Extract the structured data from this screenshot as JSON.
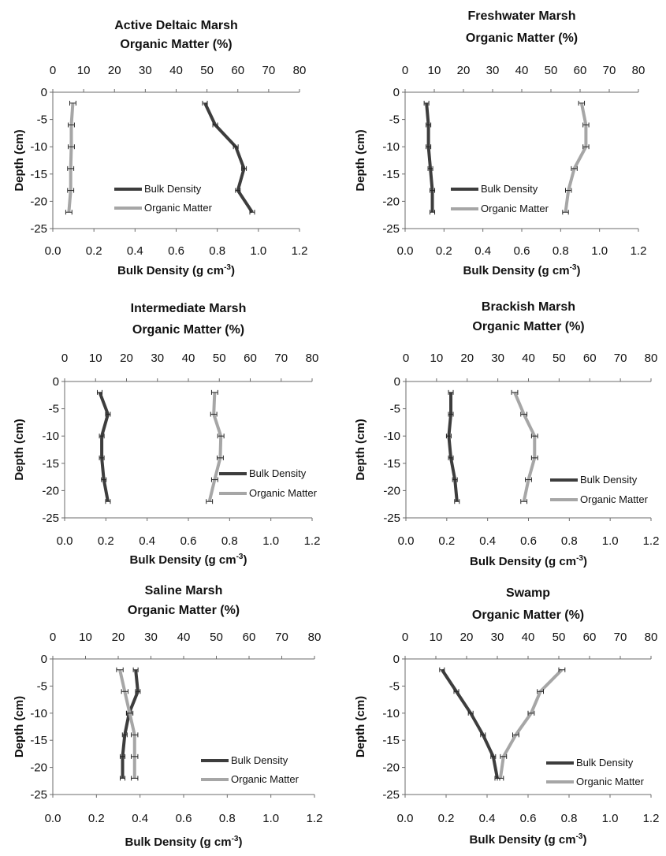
{
  "chart_data": [
    {
      "type": "line",
      "title": "Active Deltaic Marsh",
      "top_axis_label": "Organic Matter (%)",
      "bottom_axis_label": "Bulk Density (g cm",
      "bottom_axis_unit_exp": "-3",
      "bottom_axis_unit_close": ")",
      "ylabel": "Depth (cm)",
      "y": [
        -2,
        -6,
        -10,
        -14,
        -18,
        -22
      ],
      "ylim": [
        -25,
        0
      ],
      "bottom_xlim": [
        0,
        1.2
      ],
      "top_xlim": [
        0,
        80
      ],
      "y_ticks": [
        "0",
        "-5",
        "-10",
        "-15",
        "-20",
        "-25"
      ],
      "bottom_ticks": [
        "0.0",
        "0.2",
        "0.4",
        "0.6",
        "0.8",
        "1.0",
        "1.2"
      ],
      "top_ticks": [
        "0",
        "10",
        "20",
        "30",
        "40",
        "50",
        "60",
        "70",
        "80"
      ],
      "legend_position": "center-left",
      "series": [
        {
          "name": "Bulk Density",
          "axis": "bottom",
          "color": "#3d3d3d",
          "values": [
            0.74,
            0.79,
            0.89,
            0.93,
            0.9,
            0.97
          ],
          "errors": [
            0,
            0,
            0,
            0,
            0,
            0
          ]
        },
        {
          "name": "Organic Matter",
          "axis": "top",
          "color": "#a6a6a6",
          "values": [
            6.5,
            6.0,
            6.0,
            5.8,
            5.8,
            5.2
          ],
          "errors": [
            1,
            1,
            1,
            1,
            1,
            1
          ]
        }
      ]
    },
    {
      "type": "line",
      "title": "Freshwater Marsh",
      "top_axis_label": "Organic Matter (%)",
      "bottom_axis_label": "Bulk Density (g cm",
      "bottom_axis_unit_exp": "-3",
      "bottom_axis_unit_close": ")",
      "ylabel": "Depth (cm)",
      "y": [
        -2,
        -6,
        -10,
        -14,
        -18,
        -22
      ],
      "ylim": [
        -25,
        0
      ],
      "bottom_xlim": [
        0,
        1.2
      ],
      "top_xlim": [
        0,
        80
      ],
      "y_ticks": [
        "0",
        "-5",
        "-10",
        "-15",
        "-20",
        "-25"
      ],
      "bottom_ticks": [
        "0.0",
        "0.2",
        "0.4",
        "0.6",
        "0.8",
        "1.0",
        "1.2"
      ],
      "top_ticks": [
        "0",
        "10",
        "20",
        "30",
        "40",
        "50",
        "60",
        "70",
        "80"
      ],
      "legend_position": "lower-left",
      "series": [
        {
          "name": "Bulk Density",
          "axis": "bottom",
          "color": "#3d3d3d",
          "values": [
            0.11,
            0.12,
            0.12,
            0.13,
            0.14,
            0.14
          ],
          "errors": [
            0,
            0,
            0,
            0,
            0,
            0
          ]
        },
        {
          "name": "Organic Matter",
          "axis": "top",
          "color": "#a6a6a6",
          "values": [
            60.5,
            62,
            62,
            58,
            56,
            55
          ],
          "errors": [
            1,
            1,
            1,
            1,
            1,
            1
          ]
        }
      ]
    },
    {
      "type": "line",
      "title": "Intermediate Marsh",
      "top_axis_label": "Organic Matter (%)",
      "bottom_axis_label": "Bulk Density (g cm",
      "bottom_axis_unit_exp": "-3",
      "bottom_axis_unit_close": ")",
      "ylabel": "Depth (cm)",
      "y": [
        -2,
        -6,
        -10,
        -14,
        -18,
        -22
      ],
      "ylim": [
        -25,
        0
      ],
      "bottom_xlim": [
        0,
        1.2
      ],
      "top_xlim": [
        0,
        80
      ],
      "y_ticks": [
        "0",
        "-5",
        "-10",
        "-15",
        "-20",
        "-25"
      ],
      "bottom_ticks": [
        "0.0",
        "0.2",
        "0.4",
        "0.6",
        "0.8",
        "1.0",
        "1.2"
      ],
      "top_ticks": [
        "0",
        "10",
        "20",
        "30",
        "40",
        "50",
        "60",
        "70",
        "80"
      ],
      "legend_position": "lower-right",
      "series": [
        {
          "name": "Bulk Density",
          "axis": "bottom",
          "color": "#3d3d3d",
          "values": [
            0.17,
            0.21,
            0.18,
            0.18,
            0.19,
            0.21
          ],
          "errors": [
            0,
            0,
            0,
            0,
            0,
            0
          ]
        },
        {
          "name": "Organic Matter",
          "axis": "top",
          "color": "#a6a6a6",
          "values": [
            48.5,
            48.2,
            50.5,
            50.3,
            48.5,
            46.8
          ],
          "errors": [
            1,
            1,
            1,
            1,
            1,
            1
          ]
        }
      ]
    },
    {
      "type": "line",
      "title": "Brackish Marsh",
      "top_axis_label": "Organic Matter (%)",
      "bottom_axis_label": "Bulk Density (g cm",
      "bottom_axis_unit_exp": "-3",
      "bottom_axis_unit_close": ")",
      "ylabel": "Depth (cm)",
      "y": [
        -2,
        -6,
        -10,
        -14,
        -18,
        -22
      ],
      "ylim": [
        -25,
        0
      ],
      "bottom_xlim": [
        0,
        1.2
      ],
      "top_xlim": [
        0,
        80
      ],
      "y_ticks": [
        "0",
        "-5",
        "-10",
        "-15",
        "-20",
        "-25"
      ],
      "bottom_ticks": [
        "0.0",
        "0.2",
        "0.4",
        "0.6",
        "0.8",
        "1.0",
        "1.2"
      ],
      "top_ticks": [
        "0",
        "10",
        "20",
        "30",
        "40",
        "50",
        "60",
        "70",
        "80"
      ],
      "legend_position": "lower-right",
      "series": [
        {
          "name": "Bulk Density",
          "axis": "bottom",
          "color": "#3d3d3d",
          "values": [
            0.22,
            0.22,
            0.21,
            0.22,
            0.24,
            0.25
          ],
          "errors": [
            0,
            0,
            0,
            0,
            0,
            0
          ]
        },
        {
          "name": "Organic Matter",
          "axis": "top",
          "color": "#a6a6a6",
          "values": [
            35.5,
            38.5,
            42,
            42,
            40,
            38.5
          ],
          "errors": [
            1,
            1,
            1,
            1,
            1,
            1
          ]
        }
      ]
    },
    {
      "type": "line",
      "title": "Saline Marsh",
      "top_axis_label": "Organic Matter (%)",
      "bottom_axis_label": "Bulk Density (g cm",
      "bottom_axis_unit_exp": "-3",
      "bottom_axis_unit_close": ")",
      "ylabel": "Depth (cm)",
      "y": [
        -2,
        -6,
        -10,
        -14,
        -18,
        -22
      ],
      "ylim": [
        -25,
        0
      ],
      "bottom_xlim": [
        0,
        1.2
      ],
      "top_xlim": [
        0,
        80
      ],
      "y_ticks": [
        "0",
        "-5",
        "-10",
        "-15",
        "-20",
        "-25"
      ],
      "bottom_ticks": [
        "0.0",
        "0.2",
        "0.4",
        "0.6",
        "0.8",
        "1.0",
        "1.2"
      ],
      "top_ticks": [
        "0",
        "10",
        "20",
        "30",
        "40",
        "50",
        "60",
        "70",
        "80"
      ],
      "legend_position": "lower-right",
      "series": [
        {
          "name": "Bulk Density",
          "axis": "bottom",
          "color": "#3d3d3d",
          "values": [
            0.38,
            0.39,
            0.35,
            0.33,
            0.32,
            0.32
          ],
          "errors": [
            0,
            0,
            0,
            0,
            0,
            0
          ]
        },
        {
          "name": "Organic Matter",
          "axis": "top",
          "color": "#a6a6a6",
          "values": [
            20.5,
            22,
            23.5,
            25,
            25,
            25
          ],
          "errors": [
            1,
            1,
            1,
            1,
            1,
            1
          ]
        }
      ]
    },
    {
      "type": "line",
      "title": "Swamp",
      "top_axis_label": "Organic Matter (%)",
      "bottom_axis_label": "Bulk Density (g cm",
      "bottom_axis_unit_exp": "-3",
      "bottom_axis_unit_close": ")",
      "ylabel": "Depth (cm)",
      "y": [
        -2,
        -6,
        -10,
        -14,
        -18,
        -22
      ],
      "ylim": [
        -25,
        0
      ],
      "bottom_xlim": [
        0,
        1.2
      ],
      "top_xlim": [
        0,
        80
      ],
      "y_ticks": [
        "0",
        "-5",
        "-10",
        "-15",
        "-20",
        "-25"
      ],
      "bottom_ticks": [
        "0.0",
        "0.2",
        "0.4",
        "0.6",
        "0.8",
        "1.0",
        "1.2"
      ],
      "top_ticks": [
        "0",
        "10",
        "20",
        "30",
        "40",
        "50",
        "60",
        "70",
        "80"
      ],
      "legend_position": "lower-right",
      "series": [
        {
          "name": "Bulk Density",
          "axis": "bottom",
          "color": "#3d3d3d",
          "values": [
            0.18,
            0.25,
            0.32,
            0.38,
            0.43,
            0.45
          ],
          "errors": [
            0,
            0,
            0,
            0,
            0,
            0
          ]
        },
        {
          "name": "Organic Matter",
          "axis": "top",
          "color": "#a6a6a6",
          "values": [
            51,
            44,
            41,
            36,
            32,
            31
          ],
          "errors": [
            1,
            1,
            1,
            1,
            1,
            1
          ]
        }
      ]
    }
  ]
}
